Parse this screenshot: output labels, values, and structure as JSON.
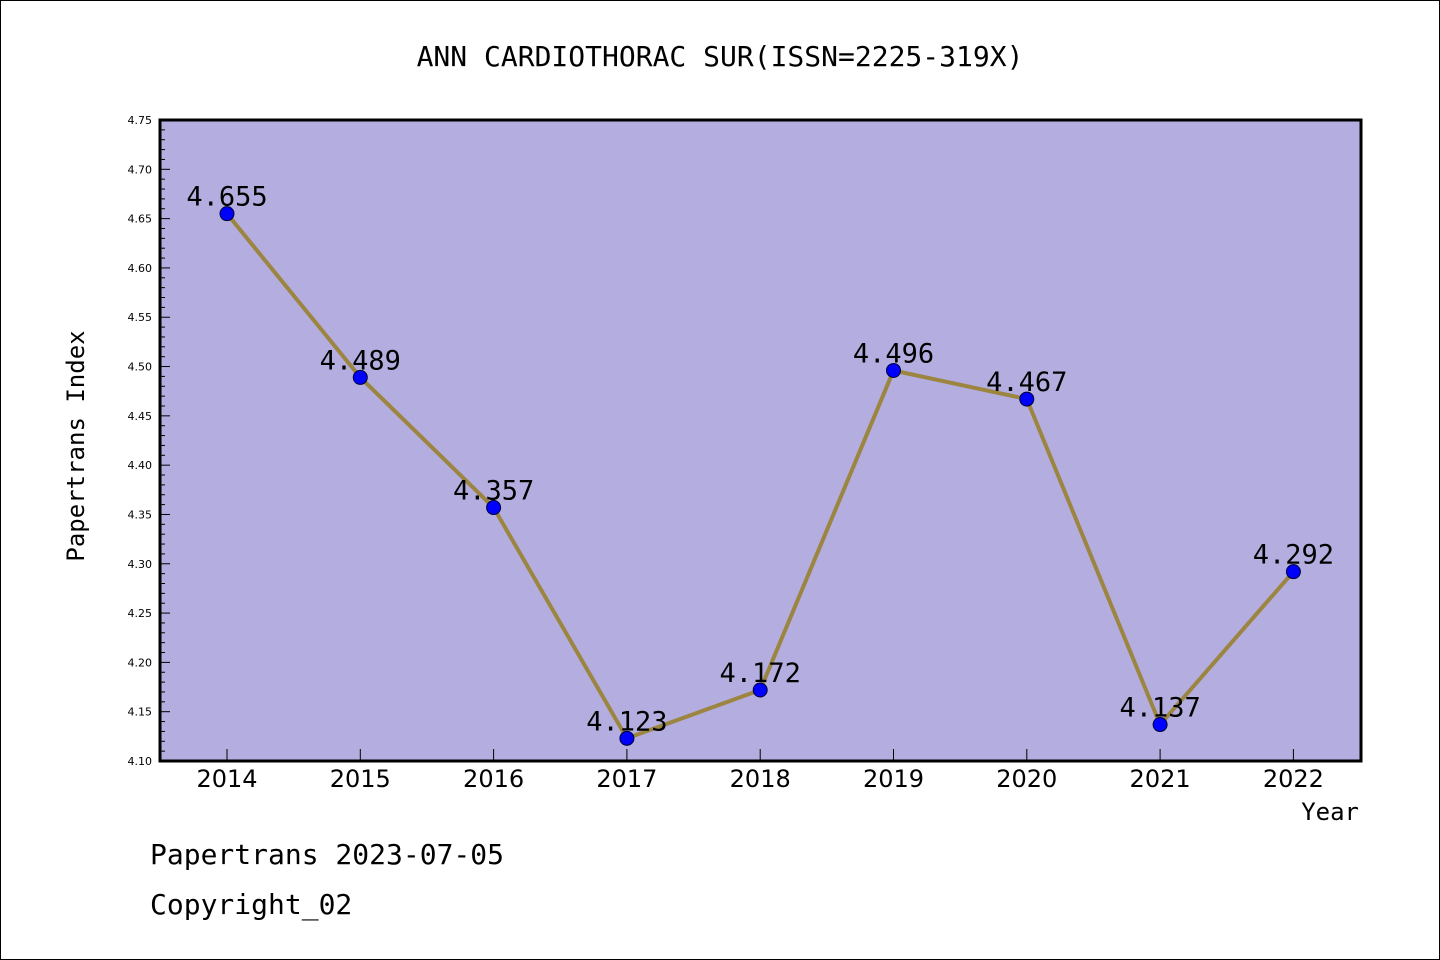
{
  "chart_data": {
    "type": "line",
    "title": "ANN CARDIOTHORAC SUR(ISSN=2225-319X)",
    "xlabel": "Year",
    "ylabel": "Papertrans Index",
    "categories": [
      "2014",
      "2015",
      "2016",
      "2017",
      "2018",
      "2019",
      "2020",
      "2021",
      "2022"
    ],
    "values": [
      4.655,
      4.489,
      4.357,
      4.123,
      4.172,
      4.496,
      4.467,
      4.137,
      4.292
    ],
    "data_labels": [
      "4.655",
      "4.489",
      "4.357",
      "4.123",
      "4.172",
      "4.496",
      "4.467",
      "4.137",
      "4.292"
    ],
    "ylim": [
      4.1,
      4.75
    ],
    "yticks": [
      "4.10",
      "4.15",
      "4.20",
      "4.25",
      "4.30",
      "4.35",
      "4.40",
      "4.45",
      "4.50",
      "4.55",
      "4.60",
      "4.65",
      "4.70",
      "4.75"
    ],
    "grid": false,
    "colors": {
      "plot_background": "#b4aee0",
      "line": "#9b8540",
      "marker": "#0000ff"
    }
  },
  "footer": {
    "line1": "Papertrans 2023-07-05",
    "line2": "Copyright_02"
  }
}
